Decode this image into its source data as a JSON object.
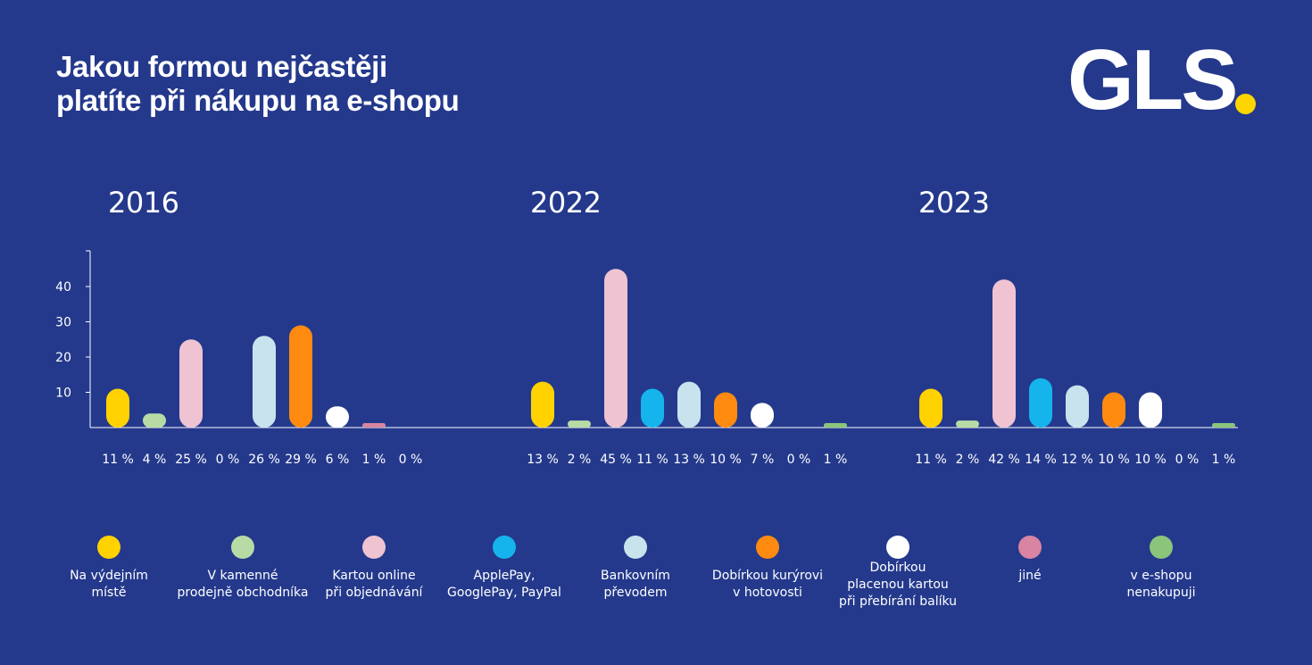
{
  "title_lines": [
    "Jakou formou nejčastěji",
    "platíte při nákupu na e-shopu"
  ],
  "logo": {
    "text": "GLS",
    "dot_color": "#ffd500"
  },
  "colors": {
    "background": "#24398c",
    "axis": "#ffffff",
    "text": "#ffffff"
  },
  "chart_data": {
    "type": "bar",
    "ylim": [
      0,
      50
    ],
    "yticks": [
      10,
      20,
      30,
      40
    ],
    "grid": false,
    "legend_placement": "bottom",
    "series": [
      {
        "name": "Na výdejním místě",
        "color": "#ffd200"
      },
      {
        "name": "V kamenné prodejně obchodníka",
        "color": "#b8dba6"
      },
      {
        "name": "Kartou online při objednávání",
        "color": "#efc3d2"
      },
      {
        "name": "ApplePay, GooglePay, PayPal",
        "color": "#15b4ec"
      },
      {
        "name": "Bankovním převodem",
        "color": "#c8e3ee"
      },
      {
        "name": "Dobírkou kurýrovi v hotovosti",
        "color": "#ff8a10"
      },
      {
        "name": "Dobírkou placenou kartou při přebírání balíku",
        "color": "#ffffff"
      },
      {
        "name": "jiné",
        "color": "#d884a2"
      },
      {
        "name": "v e-shopu nenakupuji",
        "color": "#8bc57a"
      }
    ],
    "groups": [
      {
        "year": "2016",
        "bars": [
          {
            "series": 0,
            "value": 11,
            "label": "11 %"
          },
          {
            "series": 1,
            "value": 4,
            "label": "4 %"
          },
          {
            "series": 2,
            "value": 25,
            "label": "25 %"
          },
          {
            "series": 3,
            "value": 0,
            "label": "0 %"
          },
          {
            "series": 4,
            "value": 26,
            "label": "26 %"
          },
          {
            "series": 5,
            "value": 29,
            "label": "29 %"
          },
          {
            "series": 6,
            "value": 6,
            "label": "6 %"
          },
          {
            "series": 7,
            "value": 1,
            "label": "1 %"
          },
          {
            "series": 8,
            "value": 0,
            "label": "0 %"
          }
        ]
      },
      {
        "year": "2022",
        "bars": [
          {
            "series": 0,
            "value": 13,
            "label": "13 %"
          },
          {
            "series": 1,
            "value": 2,
            "label": "2 %"
          },
          {
            "series": 2,
            "value": 45,
            "label": "45 %"
          },
          {
            "series": 3,
            "value": 11,
            "label": "11 %"
          },
          {
            "series": 4,
            "value": 13,
            "label": "13 %"
          },
          {
            "series": 5,
            "value": 10,
            "label": "10 %"
          },
          {
            "series": 6,
            "value": 7,
            "label": "7 %"
          },
          {
            "series": 7,
            "value": 0,
            "label": "0 %"
          },
          {
            "series": 8,
            "value": 1,
            "label": "1 %"
          }
        ]
      },
      {
        "year": "2023",
        "bars": [
          {
            "series": 0,
            "value": 11,
            "label": "11 %"
          },
          {
            "series": 1,
            "value": 2,
            "label": "2 %"
          },
          {
            "series": 2,
            "value": 42,
            "label": "42 %"
          },
          {
            "series": 3,
            "value": 14,
            "label": "14 %"
          },
          {
            "series": 4,
            "value": 12,
            "label": "12 %"
          },
          {
            "series": 5,
            "value": 10,
            "label": "10 %"
          },
          {
            "series": 6,
            "value": 10,
            "label": "10 %"
          },
          {
            "series": 7,
            "value": 0,
            "label": "0 %"
          },
          {
            "series": 8,
            "value": 1,
            "label": "1 %"
          }
        ]
      }
    ]
  },
  "legend": [
    {
      "label": "Na výdejním\nmístě",
      "color": "#ffd200"
    },
    {
      "label": "V kamenné\nprodejně obchodníka",
      "color": "#b8dba6"
    },
    {
      "label": "Kartou online\npři objednávání",
      "color": "#efc3d2"
    },
    {
      "label": "ApplePay,\nGooglePay, PayPal",
      "color": "#15b4ec"
    },
    {
      "label": "Bankovním\npřevodem",
      "color": "#c8e3ee"
    },
    {
      "label": "Dobírkou kurýrovi\nv hotovosti",
      "color": "#ff8a10"
    },
    {
      "label": "Dobírkou\nplacenou kartou\npři přebírání balíku",
      "color": "#ffffff"
    },
    {
      "label": "jiné",
      "color": "#d884a2"
    },
    {
      "label": "v e-shopu\nnenakupuji",
      "color": "#8bc57a"
    }
  ]
}
